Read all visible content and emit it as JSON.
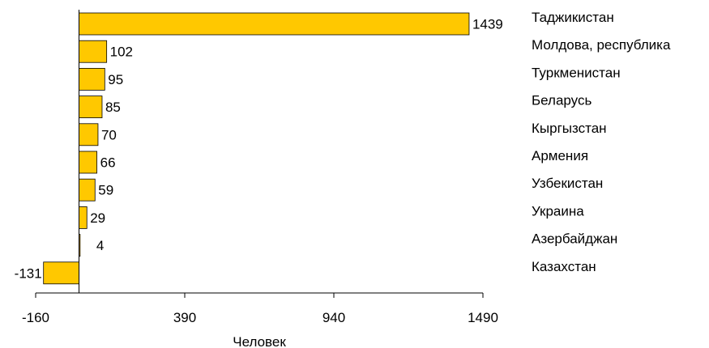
{
  "chart_data": {
    "type": "bar",
    "orientation": "horizontal",
    "categories": [
      "Таджикистан",
      "Молдова, республика",
      "Туркменистан",
      "Беларусь",
      "Кыргызстан",
      "Армения",
      "Узбекистан",
      "Украина",
      "Азербайджан",
      "Казахстан"
    ],
    "values": [
      1439,
      102,
      95,
      85,
      70,
      66,
      59,
      29,
      4,
      -131
    ],
    "value_labels": [
      "1439",
      "102",
      "95",
      "85",
      "70",
      "66",
      "59",
      "29",
      "4",
      "-131"
    ],
    "xlabel": "Человек",
    "xlim": [
      -160,
      1490
    ],
    "xticks": [
      -160,
      390,
      940,
      1490
    ],
    "xtick_labels": [
      "-160",
      "390",
      "940",
      "1490"
    ],
    "bar_color": "#FFC800",
    "legend": "none",
    "grid": false
  }
}
